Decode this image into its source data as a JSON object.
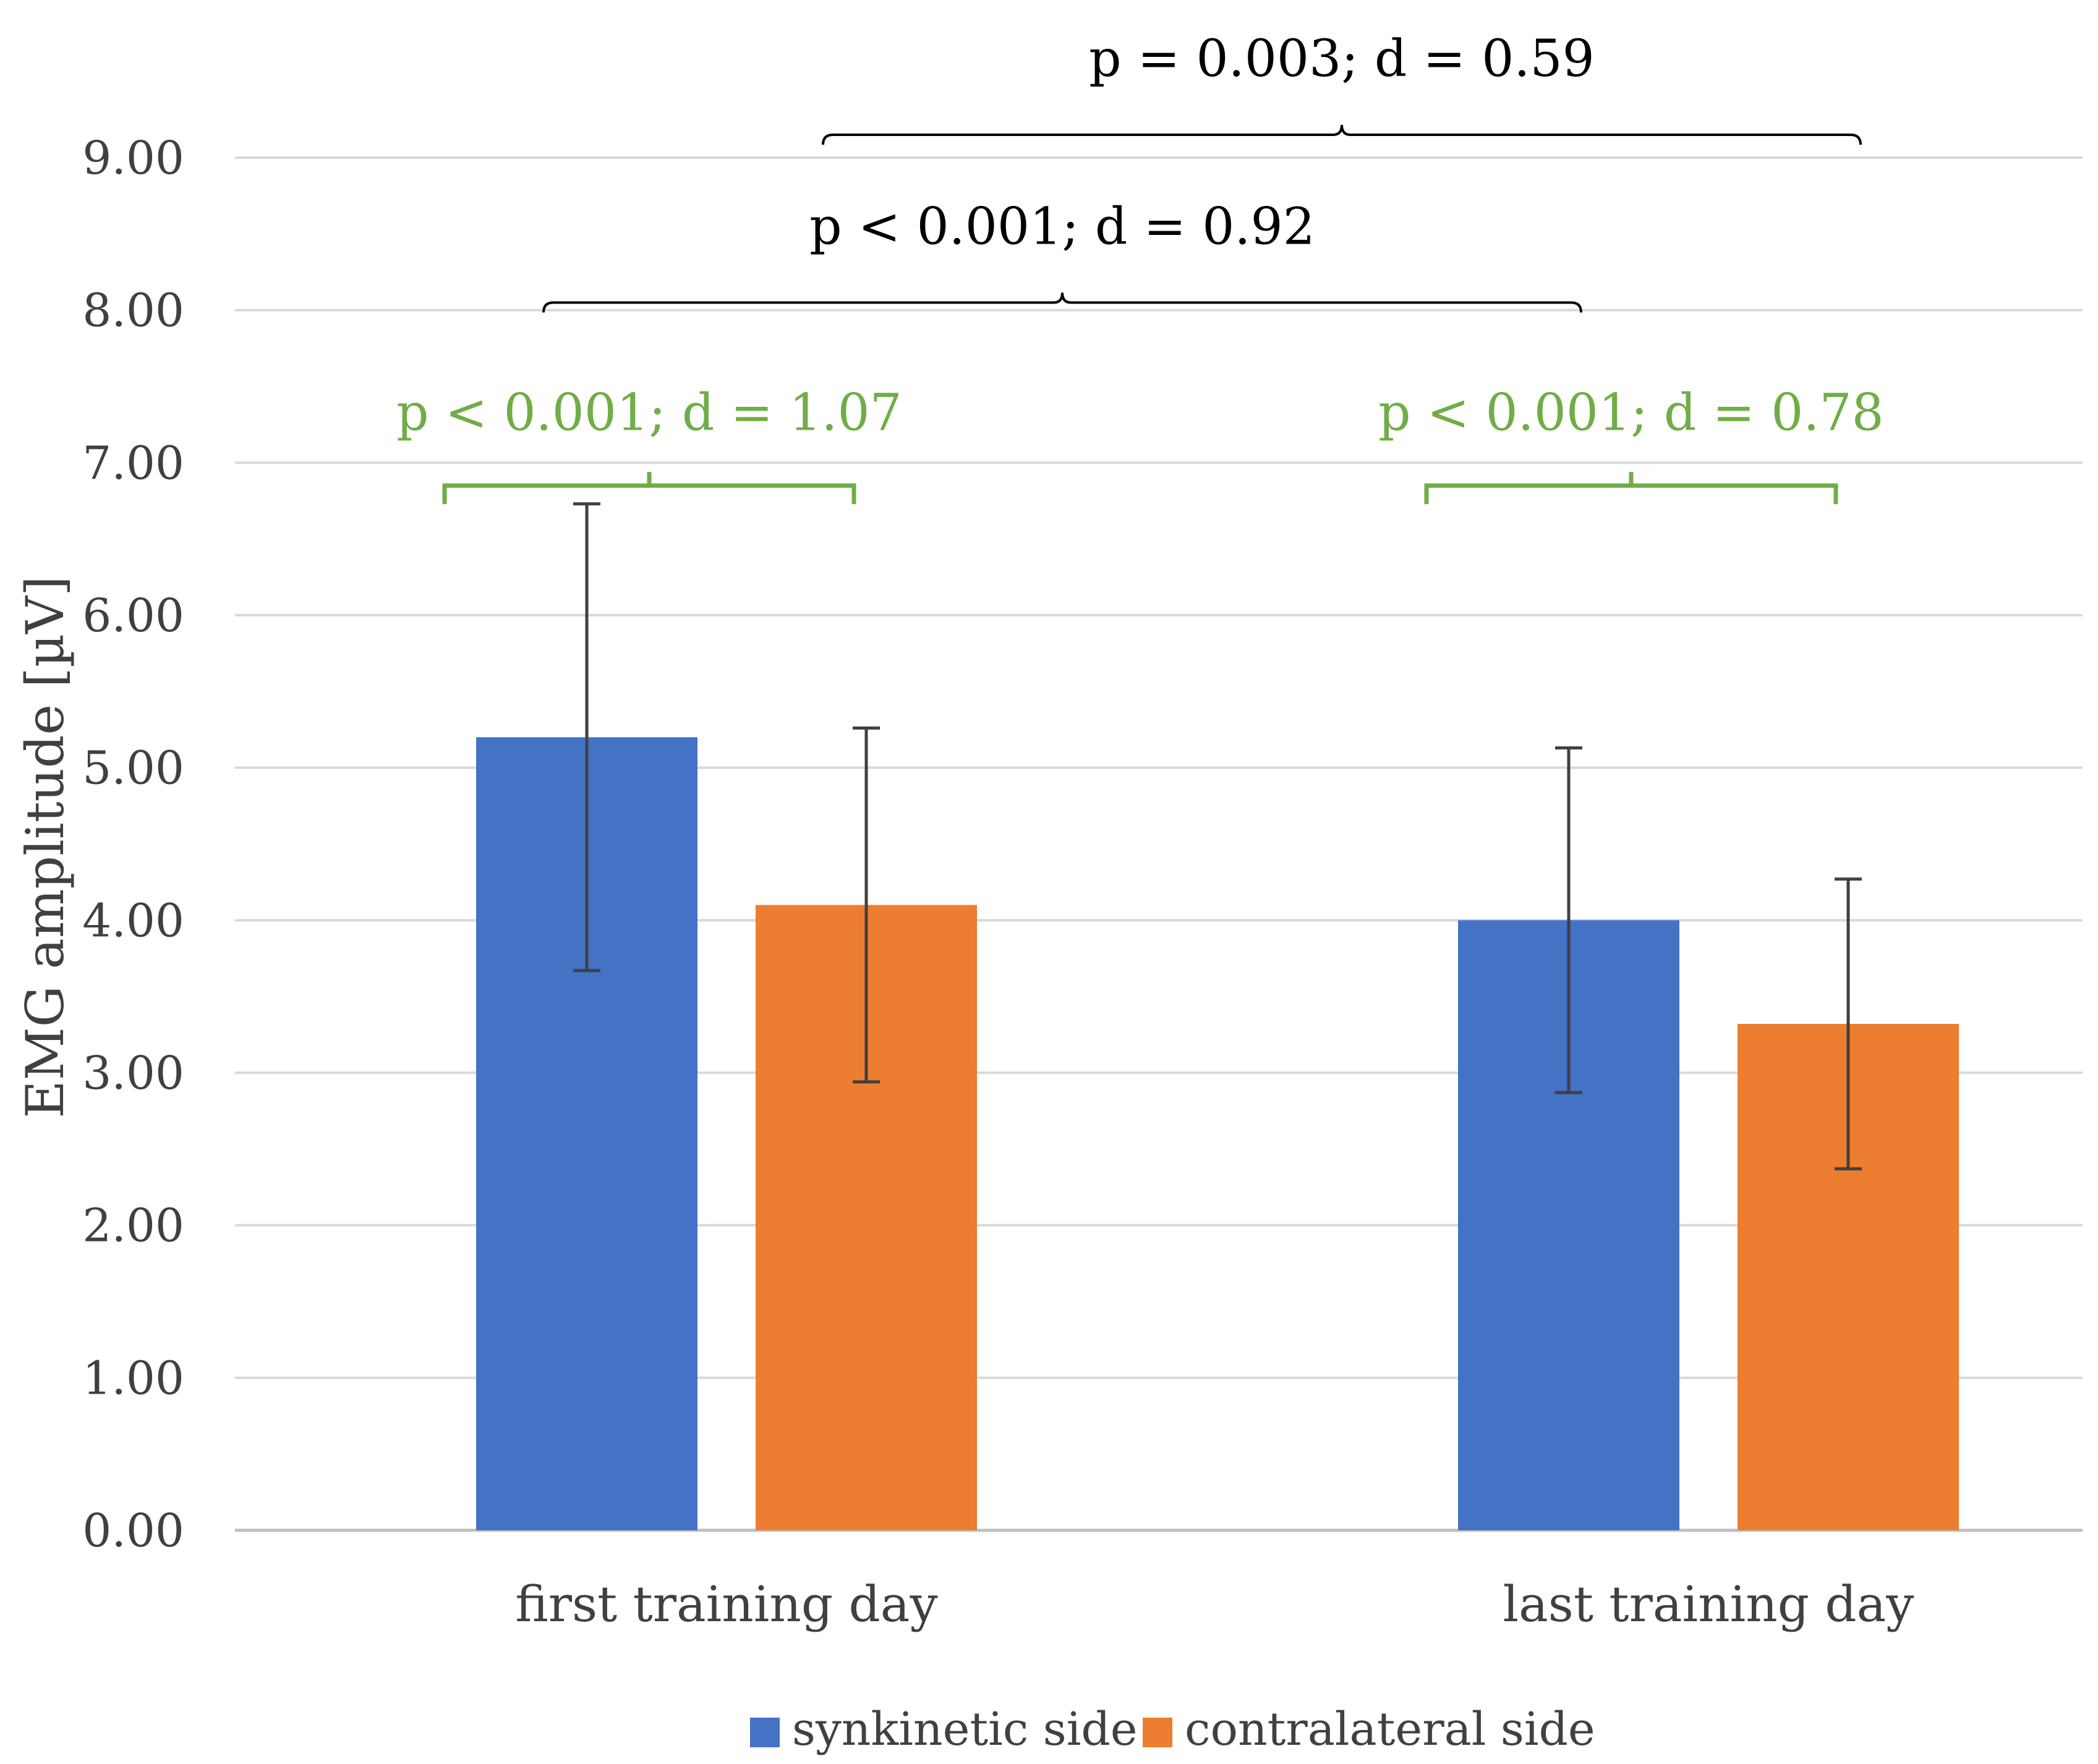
{
  "chart_data": {
    "type": "bar",
    "title": "",
    "xlabel": "",
    "ylabel": "EMG amplitude [µV]",
    "ylim": [
      0,
      9
    ],
    "ytick_step": 1,
    "ytick_decimals": 2,
    "grid": true,
    "legend_position": "bottom-center",
    "categories": [
      "first training day",
      "last training day"
    ],
    "series": [
      {
        "name": "synkinetic side",
        "color": "#4472C4",
        "values": [
          5.2,
          4.0
        ],
        "errors": [
          1.53,
          1.13
        ]
      },
      {
        "name": "contralateral side",
        "color": "#ED7D31",
        "values": [
          4.1,
          3.32
        ],
        "errors": [
          1.16,
          0.95
        ]
      }
    ],
    "annotations": [
      {
        "text": "p < 0.001; d = 1.07",
        "color": "#70AD47",
        "from": [
          0,
          0
        ],
        "to": [
          0,
          1
        ],
        "value": 6.85,
        "style": "bracket"
      },
      {
        "text": "p < 0.001; d = 0.78",
        "color": "#70AD47",
        "from": [
          1,
          0
        ],
        "to": [
          1,
          1
        ],
        "value": 6.85,
        "style": "bracket"
      },
      {
        "text": "p < 0.001; d = 0.92",
        "color": "#000000",
        "from": [
          0,
          0
        ],
        "to": [
          1,
          0
        ],
        "value": 8.05,
        "style": "brace"
      },
      {
        "text": "p = 0.003; d = 0.59",
        "color": "#000000",
        "from": [
          0,
          1
        ],
        "to": [
          1,
          1
        ],
        "value": 9.15,
        "style": "brace"
      }
    ]
  }
}
